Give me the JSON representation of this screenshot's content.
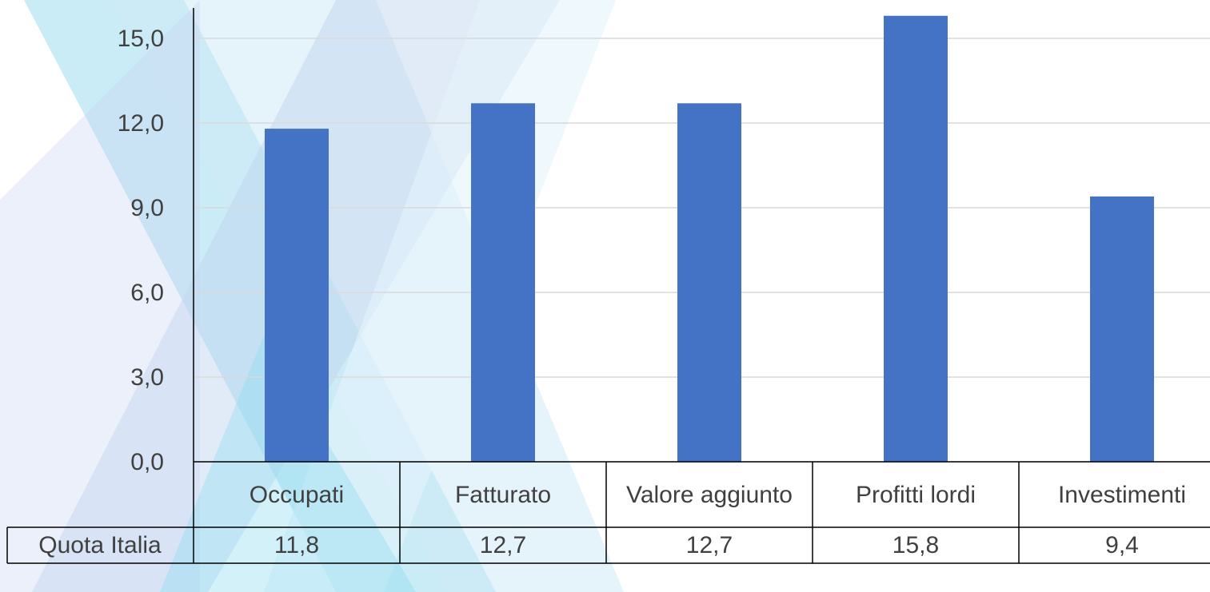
{
  "chart_data": {
    "type": "bar",
    "categories": [
      "Occupati",
      "Fatturato",
      "Valore aggiunto",
      "Profitti lordi",
      "Investimenti"
    ],
    "series": [
      {
        "name": "Quota Italia",
        "color": "#4472c4",
        "values": [
          11.8,
          12.7,
          12.7,
          15.8,
          9.4
        ],
        "value_labels": [
          "11,8",
          "12,7",
          "12,7",
          "15,8",
          "9,4"
        ]
      }
    ],
    "ylim": [
      0,
      16
    ],
    "yticks": [
      {
        "value": 0,
        "label": "0,0"
      },
      {
        "value": 3,
        "label": "3,0"
      },
      {
        "value": 6,
        "label": "6,0"
      },
      {
        "value": 9,
        "label": "9,0"
      },
      {
        "value": 12,
        "label": "12,0"
      },
      {
        "value": 15,
        "label": "15,0"
      }
    ],
    "grid": true
  }
}
